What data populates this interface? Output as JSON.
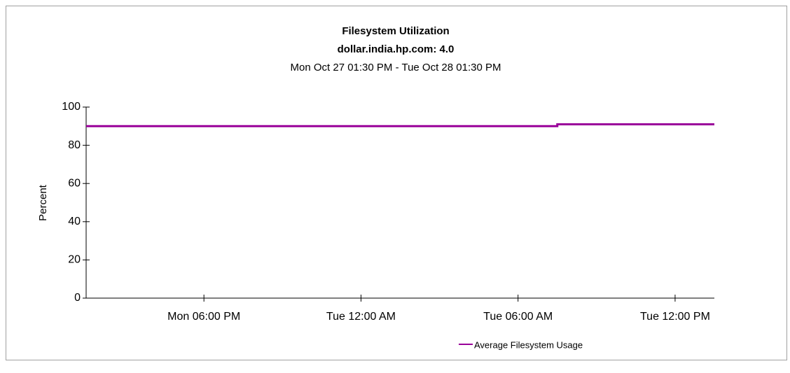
{
  "chart_data": {
    "type": "line",
    "title": "Filesystem Utilization",
    "subtitle": "dollar.india.hp.com: 4.0",
    "time_range": "Mon Oct 27 01:30 PM - Tue Oct 28 01:30 PM",
    "y_label": "Percent",
    "x": [
      0,
      18,
      18,
      24
    ],
    "series": [
      {
        "name": "Average Filesystem Usage",
        "color": "#990099",
        "values": [
          90,
          90,
          91,
          91
        ]
      }
    ],
    "xlim": [
      0,
      24
    ],
    "xticks": [
      {
        "value": 4.5,
        "label": "Mon 06:00 PM"
      },
      {
        "value": 10.5,
        "label": "Tue 12:00 AM"
      },
      {
        "value": 16.5,
        "label": "Tue 06:00 AM"
      },
      {
        "value": 22.5,
        "label": "Tue 12:00 PM"
      }
    ],
    "ylim": [
      0,
      100
    ],
    "yticks": [
      0,
      20,
      40,
      60,
      80,
      100
    ],
    "grid": false,
    "legend": "bottom"
  }
}
